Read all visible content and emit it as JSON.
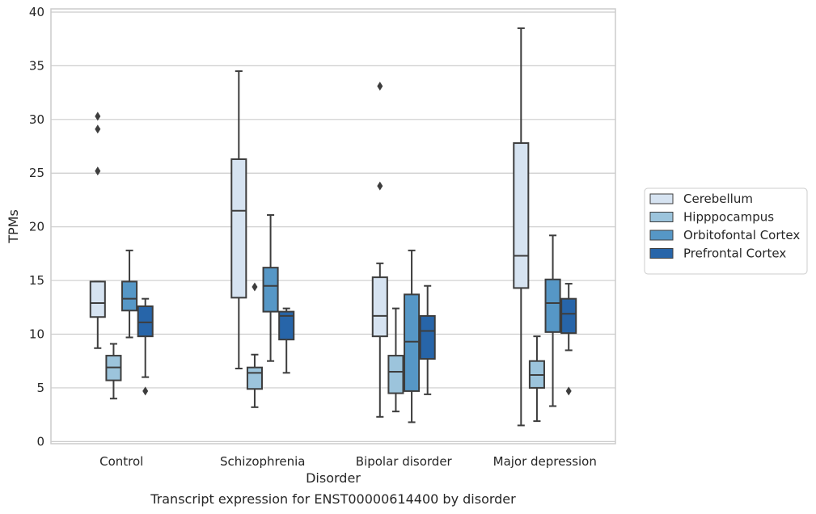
{
  "chart_data": {
    "type": "boxplot",
    "caption": "Transcript expression for ENST00000614400 by disorder",
    "xlabel": "Disorder",
    "ylabel": "TPMs",
    "ylim": [
      -0.2,
      40.3
    ],
    "yticks": [
      0,
      5,
      10,
      15,
      20,
      25,
      30,
      35,
      40
    ],
    "grid": true,
    "legend_position": "right",
    "categories": [
      "Control",
      "Schizophrenia",
      "Bipolar disorder",
      "Major depression"
    ],
    "series": [
      {
        "name": "Cerebellum",
        "color": "#d6e3f1",
        "boxes": [
          {
            "whisker_low": 8.7,
            "q1": 11.6,
            "median": 12.9,
            "q3": 14.9,
            "whisker_high": 14.9,
            "outliers": [
              25.2,
              29.1,
              30.3
            ]
          },
          {
            "whisker_low": 6.8,
            "q1": 13.4,
            "median": 21.5,
            "q3": 26.3,
            "whisker_high": 34.5,
            "outliers": []
          },
          {
            "whisker_low": 2.3,
            "q1": 9.8,
            "median": 11.7,
            "q3": 15.3,
            "whisker_high": 16.6,
            "outliers": [
              23.8,
              33.1
            ]
          },
          {
            "whisker_low": 1.5,
            "q1": 14.3,
            "median": 17.3,
            "q3": 27.8,
            "whisker_high": 38.5,
            "outliers": []
          }
        ]
      },
      {
        "name": "Hipppocampus",
        "color": "#9cc4dc",
        "boxes": [
          {
            "whisker_low": 4.0,
            "q1": 5.7,
            "median": 6.9,
            "q3": 8.0,
            "whisker_high": 9.1,
            "outliers": []
          },
          {
            "whisker_low": 3.2,
            "q1": 4.9,
            "median": 6.4,
            "q3": 6.9,
            "whisker_high": 8.1,
            "outliers": [
              14.4
            ]
          },
          {
            "whisker_low": 2.8,
            "q1": 4.5,
            "median": 6.5,
            "q3": 8.0,
            "whisker_high": 12.4,
            "outliers": []
          },
          {
            "whisker_low": 1.9,
            "q1": 5.0,
            "median": 6.2,
            "q3": 7.5,
            "whisker_high": 9.8,
            "outliers": []
          }
        ]
      },
      {
        "name": "Orbitofontal Cortex",
        "color": "#5697c6",
        "boxes": [
          {
            "whisker_low": 9.7,
            "q1": 12.2,
            "median": 13.3,
            "q3": 14.9,
            "whisker_high": 17.8,
            "outliers": []
          },
          {
            "whisker_low": 7.5,
            "q1": 12.1,
            "median": 14.5,
            "q3": 16.2,
            "whisker_high": 21.1,
            "outliers": []
          },
          {
            "whisker_low": 1.8,
            "q1": 4.7,
            "median": 9.3,
            "q3": 13.7,
            "whisker_high": 17.8,
            "outliers": []
          },
          {
            "whisker_low": 3.3,
            "q1": 10.2,
            "median": 12.9,
            "q3": 15.1,
            "whisker_high": 19.2,
            "outliers": []
          }
        ]
      },
      {
        "name": "Prefrontal Cortex",
        "color": "#2765a9",
        "boxes": [
          {
            "whisker_low": 6.0,
            "q1": 9.8,
            "median": 11.1,
            "q3": 12.6,
            "whisker_high": 13.3,
            "outliers": [
              4.7
            ]
          },
          {
            "whisker_low": 6.4,
            "q1": 9.5,
            "median": 11.7,
            "q3": 12.1,
            "whisker_high": 12.4,
            "outliers": []
          },
          {
            "whisker_low": 4.4,
            "q1": 7.7,
            "median": 10.3,
            "q3": 11.7,
            "whisker_high": 14.5,
            "outliers": []
          },
          {
            "whisker_low": 8.5,
            "q1": 10.1,
            "median": 11.9,
            "q3": 13.3,
            "whisker_high": 14.7,
            "outliers": [
              4.7
            ]
          }
        ]
      }
    ]
  }
}
